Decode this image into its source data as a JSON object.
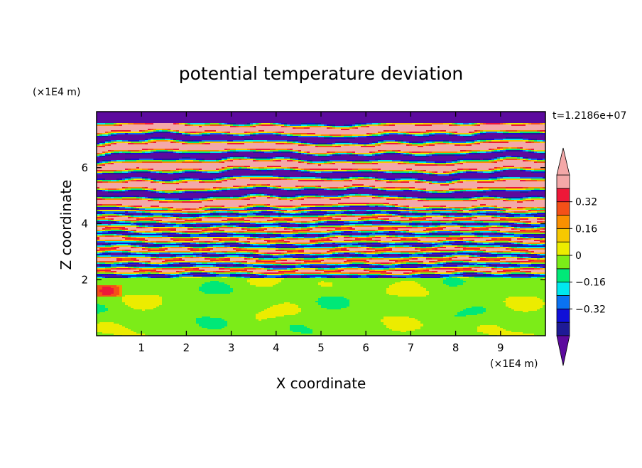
{
  "chart_data": {
    "type": "heatmap",
    "title": "potential temperature deviation",
    "xlabel": "X coordinate",
    "ylabel": "Z coordinate",
    "x_unit": "(×1E4 m)",
    "y_unit": "(×1E4 m)",
    "time_label": "t=1.2186e+07",
    "xlim": [
      0,
      10
    ],
    "ylim": [
      0,
      8
    ],
    "x_ticks": [
      1,
      2,
      3,
      4,
      5,
      6,
      7,
      8,
      9
    ],
    "y_ticks": [
      2,
      4,
      6
    ],
    "colorbar": {
      "levels": [
        -0.48,
        -0.4,
        -0.32,
        -0.24,
        -0.16,
        -0.08,
        0,
        0.08,
        0.16,
        0.24,
        0.32,
        0.4,
        0.48
      ],
      "tick_labels": [
        "0.32",
        "0.16",
        "0",
        "−0.16",
        "−0.32"
      ],
      "tick_values": [
        0.32,
        0.16,
        0,
        -0.16,
        -0.32
      ],
      "colors": [
        "#5c0a9e",
        "#1e1a96",
        "#1010d8",
        "#0a72f2",
        "#00e8ee",
        "#00e878",
        "#7cec18",
        "#ecec00",
        "#f6c800",
        "#fa9000",
        "#f45018",
        "#ee1838",
        "#f4a8a8",
        "#f4a8a8"
      ],
      "extend": "both"
    },
    "regions": [
      {
        "z_range": [
          0,
          2.05
        ],
        "description": "lower layer mostly near zero",
        "dominant_values": [
          -0.04,
          0.04
        ]
      },
      {
        "z_range": [
          2.05,
          4.5
        ],
        "description": "mixed banded layer",
        "dominant_values": [
          -0.48,
          -0.24,
          0,
          0.24,
          0.48
        ]
      },
      {
        "z_range": [
          4.5,
          8
        ],
        "description": "alternating strong positive and negative bands",
        "dominant_values": [
          -0.48,
          0.48
        ]
      }
    ]
  },
  "colors": {
    "frame": "#000000",
    "background": "#ffffff",
    "lower_green": "#00e878",
    "light_green": "#7cec18",
    "pink": "#f4a8a8",
    "purple": "#5c0a9e"
  }
}
